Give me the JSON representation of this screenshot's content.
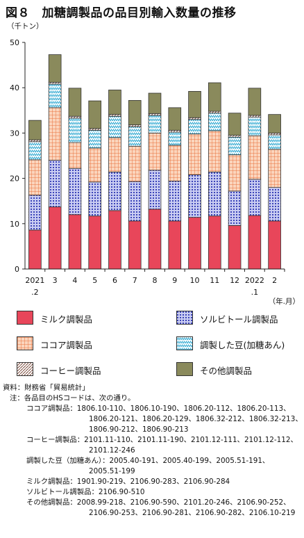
{
  "title": "図８　加糖調製品の品目別輸入数量の推移",
  "chart_data": {
    "type": "bar",
    "stacked": true,
    "unit_label": "（千トン）",
    "x_unit_label": "（年.月）",
    "ylim": [
      0,
      50
    ],
    "y_ticks": [
      0,
      10,
      20,
      30,
      40,
      50
    ],
    "grid": false,
    "categories": [
      "2021\n.2",
      "3",
      "4",
      "5",
      "6",
      "7",
      "8",
      "9",
      "10",
      "11",
      "12",
      "2022\n.1",
      "2"
    ],
    "category_labels": [
      {
        "top": "2021",
        "bottom": ".2"
      },
      {
        "top": "3",
        "bottom": ""
      },
      {
        "top": "4",
        "bottom": ""
      },
      {
        "top": "5",
        "bottom": ""
      },
      {
        "top": "6",
        "bottom": ""
      },
      {
        "top": "7",
        "bottom": ""
      },
      {
        "top": "8",
        "bottom": ""
      },
      {
        "top": "9",
        "bottom": ""
      },
      {
        "top": "10",
        "bottom": ""
      },
      {
        "top": "11",
        "bottom": ""
      },
      {
        "top": "12",
        "bottom": ""
      },
      {
        "top": "2022",
        "bottom": ".1"
      },
      {
        "top": "2",
        "bottom": ""
      }
    ],
    "series": [
      {
        "name": "ミルク調製品",
        "color": "#e8465a",
        "pattern": "solid",
        "values": [
          8.6,
          13.7,
          12.0,
          11.7,
          12.9,
          10.6,
          13.2,
          10.6,
          11.4,
          11.7,
          9.6,
          11.8,
          10.6
        ]
      },
      {
        "name": "ソルビトール調製品",
        "color": "#8a8fd8",
        "pattern": "dots",
        "values": [
          7.7,
          10.3,
          10.2,
          7.5,
          8.5,
          8.7,
          8.6,
          8.8,
          9.4,
          9.7,
          7.6,
          8.0,
          7.4
        ]
      },
      {
        "name": "ココア調製品",
        "color": "#f4a77c",
        "pattern": "grid",
        "values": [
          7.8,
          11.6,
          5.7,
          7.5,
          7.6,
          7.8,
          8.2,
          7.9,
          9.0,
          9.1,
          8.0,
          9.6,
          8.4
        ]
      },
      {
        "name": "調製した豆（加糖あん）",
        "color": "#7ed0e8",
        "pattern": "zigzag",
        "values": [
          4.0,
          5.2,
          5.4,
          3.9,
          4.7,
          4.3,
          3.9,
          2.9,
          3.2,
          3.9,
          3.9,
          4.1,
          3.2
        ]
      },
      {
        "name": "コーヒー調製品",
        "color": "#a87a6a",
        "pattern": "diag",
        "values": [
          0.4,
          0.4,
          0.4,
          0.4,
          0.4,
          0.4,
          0.4,
          0.4,
          0.4,
          0.4,
          0.4,
          0.4,
          0.4
        ]
      },
      {
        "name": "その他調製品",
        "color": "#8a8a5c",
        "pattern": "solid",
        "values": [
          4.3,
          6.1,
          6.2,
          6.1,
          5.4,
          5.4,
          4.5,
          5.0,
          5.8,
          6.3,
          4.9,
          6.0,
          4.1
        ]
      }
    ]
  },
  "legend": [
    {
      "label": "ミルク調製品"
    },
    {
      "label": "ソルビトール調製品"
    },
    {
      "label": "ココア調製品"
    },
    {
      "label": "調製した豆(加糖あん)"
    },
    {
      "label": "コーヒー調製品"
    },
    {
      "label": "その他調製品"
    }
  ],
  "notes": {
    "source_label": "資料：",
    "source_text": "財務省「貿易統計」",
    "note_label": "注：",
    "note_text": "各品目のHSコードは、次の通り。",
    "items": [
      {
        "name": "ココア調製品",
        "sep": "：",
        "lines": [
          "1806.10-110、1806.10-190、1806.20-112、1806.20-113、",
          "1806.20-121、1806.20-129、1806.32-212、1806.32-213、",
          "1806.90-212、1806.90-213"
        ]
      },
      {
        "name": "コーヒー調製品",
        "sep": "：",
        "lines": [
          "2101.11-110、2101.11-190、2101.12-111、2101.12-112、",
          "2101.12-246"
        ]
      },
      {
        "name": "調製した豆（加糖あん）",
        "sep": "：",
        "lines": [
          "2005.40-191、2005.40-199、2005.51-191、",
          "2005.51-199"
        ]
      },
      {
        "name": "ミルク調製品",
        "sep": "：",
        "lines": [
          "1901.90-219、2106.90-283、2106.90-284"
        ]
      },
      {
        "name": "ソルビトール調製品",
        "sep": "：",
        "lines": [
          "2106.90-510"
        ]
      },
      {
        "name": "その他調製品",
        "sep": "：",
        "lines": [
          "2008.99-218、2106.90-590、2101.20-246、2106.90-252、",
          "2106.90-253、2106.90-281、2106.90-282、2106.10-219"
        ]
      }
    ]
  }
}
